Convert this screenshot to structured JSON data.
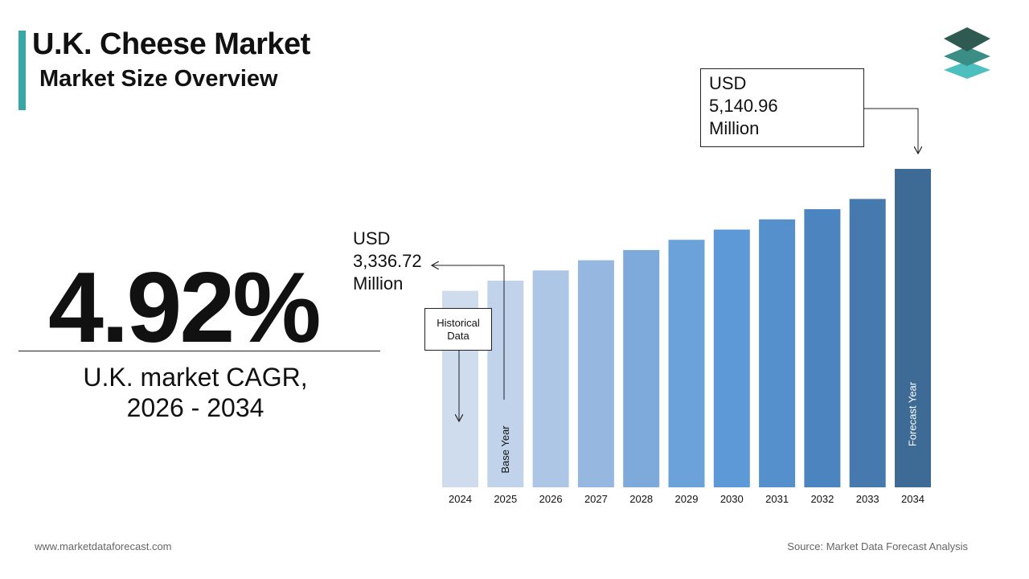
{
  "header": {
    "title": "U.K. Cheese Market",
    "subtitle": "Market Size Overview"
  },
  "cagr": {
    "value": "4.92%",
    "label_line1": "U.K.  market CAGR,",
    "label_line2": "2026 - 2034"
  },
  "callouts": {
    "historical_line1": "Historical",
    "historical_line2": "Data",
    "base_line1": "USD",
    "base_line2": "3,336.72",
    "base_line3": "Million",
    "max_line1": "USD",
    "max_line2": "5,140.96",
    "max_line3": "Million",
    "base_year_label": "Base Year",
    "forecast_year_label": "Forecast Year"
  },
  "footer": {
    "website": "www.marketdataforecast.com",
    "source": "Source: Market Data Forecast Analysis"
  },
  "colors": {
    "accent": "#3aa6a6",
    "bars": [
      "#cfdcee",
      "#c1d3ea",
      "#adc6e6",
      "#96b8e0",
      "#7eaadb",
      "#6aa2d9",
      "#5c99d6",
      "#5590cc",
      "#4c84bf",
      "#4679ad",
      "#3e6a96"
    ]
  },
  "chart_data": {
    "type": "bar",
    "categories": [
      "2024",
      "2025",
      "2026",
      "2027",
      "2028",
      "2029",
      "2030",
      "2031",
      "2032",
      "2033",
      "2034"
    ],
    "values": [
      3171,
      3336.72,
      3501,
      3666,
      3831,
      3996,
      4161,
      4326,
      4491,
      4656,
      5140.96
    ],
    "ylim": [
      0,
      5140.96
    ],
    "xlabel": "",
    "ylabel": "",
    "grid": false,
    "legend": "none"
  }
}
